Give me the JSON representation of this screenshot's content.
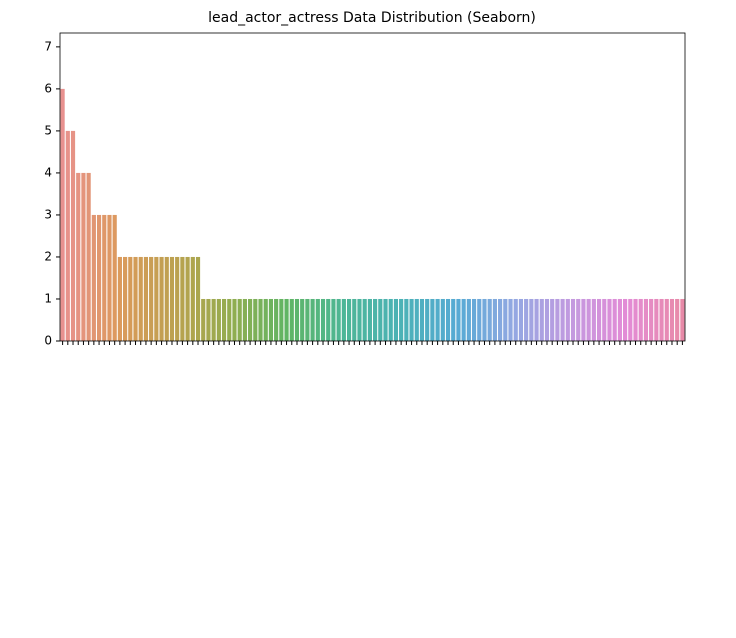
{
  "chart_data": {
    "type": "bar",
    "title": "lead_actor_actress Data Distribution (Seaborn)",
    "categories": [
      null,
      null,
      null,
      null,
      null,
      null,
      null,
      null,
      null,
      null,
      null,
      null,
      null,
      null,
      null,
      null,
      null,
      null,
      null,
      null,
      null,
      null,
      null,
      null,
      null,
      null,
      null,
      null,
      null,
      null,
      null,
      null,
      null,
      null,
      null,
      null,
      null,
      null,
      null,
      null,
      null,
      null,
      null,
      null,
      null,
      null,
      null,
      null,
      null,
      null,
      null,
      null,
      null,
      null,
      null,
      null,
      null,
      null,
      null,
      null,
      null,
      null,
      null,
      null,
      null,
      null,
      null,
      null,
      null,
      null,
      null,
      null,
      null,
      null,
      null,
      null,
      null,
      null,
      null,
      null,
      null,
      null,
      null,
      null,
      null,
      null,
      null,
      null,
      null,
      null,
      null,
      null,
      null,
      null,
      null,
      null,
      null,
      null,
      null,
      null,
      null,
      null,
      null,
      null,
      null,
      null,
      null,
      null,
      null,
      null,
      null,
      null,
      null,
      null,
      null,
      null,
      null,
      null,
      null,
      null
    ],
    "values": [
      6,
      5,
      5,
      4,
      4,
      4,
      3,
      3,
      3,
      3,
      3,
      2,
      2,
      2,
      2,
      2,
      2,
      2,
      2,
      2,
      2,
      2,
      2,
      2,
      2,
      2,
      2,
      1,
      1,
      1,
      1,
      1,
      1,
      1,
      1,
      1,
      1,
      1,
      1,
      1,
      1,
      1,
      1,
      1,
      1,
      1,
      1,
      1,
      1,
      1,
      1,
      1,
      1,
      1,
      1,
      1,
      1,
      1,
      1,
      1,
      1,
      1,
      1,
      1,
      1,
      1,
      1,
      1,
      1,
      1,
      1,
      1,
      1,
      1,
      1,
      1,
      1,
      1,
      1,
      1,
      1,
      1,
      1,
      1,
      1,
      1,
      1,
      1,
      1,
      1,
      1,
      1,
      1,
      1,
      1,
      1,
      1,
      1,
      1,
      1,
      1,
      1,
      1,
      1,
      1,
      1,
      1,
      1,
      1,
      1,
      1,
      1,
      1,
      1,
      1,
      1,
      1,
      1,
      1,
      1
    ],
    "palette": [
      "#e8918f",
      "#dc9a5c",
      "#bba14f",
      "#92ad4f",
      "#5fb565",
      "#4db697",
      "#4bb2b6",
      "#56aad4",
      "#93a8e2",
      "#c29ae0",
      "#e38bd6",
      "#e88aa8"
    ],
    "ylim": [
      0,
      7.33
    ],
    "yticks": [
      0,
      1,
      2,
      3,
      4,
      5,
      6,
      7
    ]
  }
}
